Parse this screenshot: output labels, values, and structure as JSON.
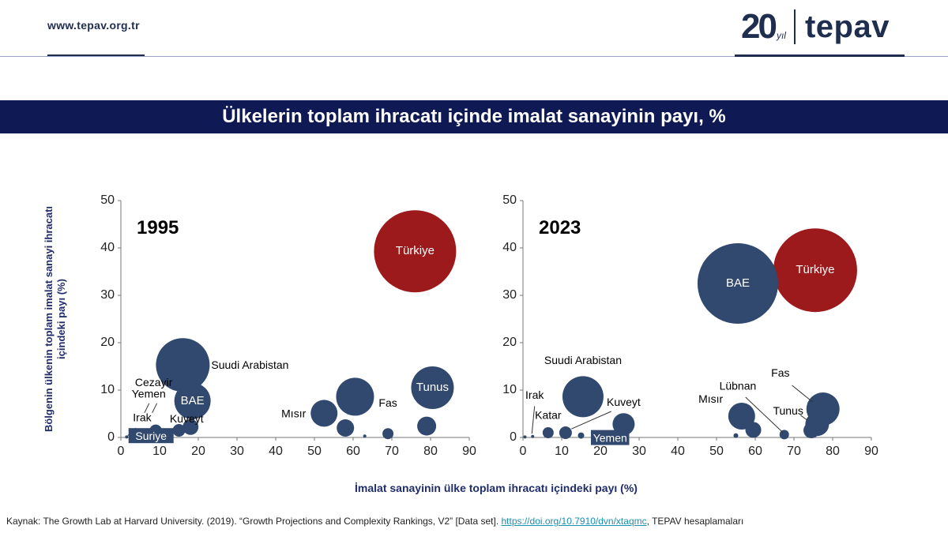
{
  "header": {
    "url": "www.tepav.org.tr",
    "logo_number": "20",
    "logo_suffix": "yıl",
    "logo_name": "tepav"
  },
  "title": "Ülkelerin toplam ihracatı içinde imalat sanayinin payı, %",
  "colors": {
    "navy": "#31496e",
    "red": "#9c1a1c",
    "band": "#0f1a55"
  },
  "chart_data": [
    {
      "type": "scatter",
      "year_label": "1995",
      "xlabel": "İmalat sanayinin ülke toplam ihracatı içindeki payı (%)",
      "ylabel": "Bölgenin ülkenin toplam imalat sanayi ihracatı içindeki payı (%)",
      "xlim": [
        0,
        90
      ],
      "ylim": [
        0,
        50
      ],
      "xticks": [
        "0",
        "10",
        "20",
        "30",
        "40",
        "50",
        "60",
        "70",
        "80",
        "90"
      ],
      "yticks": [
        "0",
        "10",
        "20",
        "30",
        "40",
        "50"
      ],
      "points": [
        {
          "label": "Türkiye",
          "x": 76,
          "y": 39.3,
          "r": 52,
          "color": "#9c1a1c",
          "labelpos": "inside"
        },
        {
          "label": "Suudi Arabistan",
          "x": 16,
          "y": 15.3,
          "r": 34,
          "color": "#31496e",
          "labelpos": "right"
        },
        {
          "label": "BAE",
          "x": 18.5,
          "y": 7.7,
          "r": 23,
          "color": "#31496e",
          "labelpos": "inside"
        },
        {
          "label": "Tunus",
          "x": 80.5,
          "y": 10.5,
          "r": 27,
          "color": "#31496e",
          "labelpos": "inside"
        },
        {
          "label": "Mısır",
          "x": 52.5,
          "y": 5.1,
          "r": 17,
          "color": "#31496e",
          "labelpos": "left"
        },
        {
          "label": "Fas",
          "x": 60.5,
          "y": 8.6,
          "r": 24,
          "color": "#31496e",
          "labelpos": "none"
        },
        {
          "label": "",
          "x": 58,
          "y": 2,
          "r": 11,
          "color": "#31496e",
          "labelpos": "none"
        },
        {
          "label": "",
          "x": 69,
          "y": 0.8,
          "r": 7,
          "color": "#31496e",
          "labelpos": "none"
        },
        {
          "label": "",
          "x": 79,
          "y": 2.4,
          "r": 12,
          "color": "#31496e",
          "labelpos": "none"
        },
        {
          "label": "",
          "x": 63,
          "y": 0.3,
          "r": 2,
          "color": "#31496e",
          "labelpos": "none"
        },
        {
          "label": "Kuveyt",
          "x": 18,
          "y": 2.2,
          "r": 10,
          "color": "#31496e",
          "labelpos": "none"
        },
        {
          "label": "",
          "x": 15,
          "y": 1.5,
          "r": 8,
          "color": "#31496e",
          "labelpos": "none"
        },
        {
          "label": "Cezayir",
          "x": 9,
          "y": 1.4,
          "r": 8,
          "color": "#31496e",
          "labelpos": "none"
        },
        {
          "label": "Yemen",
          "x": 7,
          "y": 0.8,
          "r": 4,
          "color": "#31496e",
          "labelpos": "none"
        },
        {
          "label": "Irak",
          "x": 1.5,
          "y": 0.1,
          "r": 2,
          "color": "#31496e",
          "labelpos": "none"
        },
        {
          "label": "Suriye",
          "x": 10,
          "y": 0.4,
          "r": 6,
          "color": "#31496e",
          "labelpos": "none"
        }
      ],
      "annotations": [
        {
          "text": "Fas",
          "x": 69,
          "y": 6.5,
          "anchor": "middle",
          "style": "plain"
        },
        {
          "text": "Kuveyt",
          "x": 17,
          "y": 3.2,
          "anchor": "middle",
          "style": "plain"
        },
        {
          "text": "Cezayir",
          "x": 8.5,
          "y": 10.8,
          "anchor": "middle",
          "style": "plain"
        },
        {
          "text": "Yemen",
          "x": 7.2,
          "y": 8.4,
          "anchor": "middle",
          "style": "plain"
        },
        {
          "text": "Irak",
          "x": 5.5,
          "y": 3.4,
          "anchor": "middle",
          "style": "plain"
        },
        {
          "text": "Suriye",
          "x": 7.8,
          "y": 0.3,
          "anchor": "middle",
          "style": "boxed"
        }
      ],
      "leaders": [
        {
          "x1": 9.3,
          "y1": 7.2,
          "x2": 8.1,
          "y2": 5.2
        },
        {
          "x1": 7.3,
          "y1": 7.2,
          "x2": 6.1,
          "y2": 5.2
        },
        {
          "x1": 3.8,
          "y1": 2.0,
          "x2": 1.8,
          "y2": 0.4
        }
      ]
    },
    {
      "type": "scatter",
      "year_label": "2023",
      "xlim": [
        0,
        90
      ],
      "ylim": [
        0,
        50
      ],
      "xticks": [
        "0",
        "10",
        "20",
        "30",
        "40",
        "50",
        "60",
        "70",
        "80",
        "90"
      ],
      "yticks": [
        "0",
        "10",
        "20",
        "30",
        "40",
        "50"
      ],
      "points": [
        {
          "label": "Türkiye",
          "x": 75.5,
          "y": 35.3,
          "r": 53,
          "color": "#9c1a1c",
          "labelpos": "inside"
        },
        {
          "label": "BAE",
          "x": 55.5,
          "y": 32.5,
          "r": 51,
          "color": "#31496e",
          "labelpos": "inside"
        },
        {
          "label": "Suudi Arabistan",
          "x": 15.5,
          "y": 8.6,
          "r": 26,
          "color": "#31496e",
          "labelpos": "none"
        },
        {
          "label": "Kuveyt",
          "x": 26,
          "y": 2.8,
          "r": 14,
          "color": "#31496e",
          "labelpos": "none"
        },
        {
          "label": "",
          "x": 11,
          "y": 1,
          "r": 8,
          "color": "#31496e",
          "labelpos": "none"
        },
        {
          "label": "",
          "x": 6.5,
          "y": 1,
          "r": 7,
          "color": "#31496e",
          "labelpos": "none"
        },
        {
          "label": "",
          "x": 2.5,
          "y": 0.2,
          "r": 2,
          "color": "#31496e",
          "labelpos": "none"
        },
        {
          "label": "",
          "x": 0.5,
          "y": 0.1,
          "r": 2,
          "color": "#31496e",
          "labelpos": "none"
        },
        {
          "label": "",
          "x": 15,
          "y": 0.4,
          "r": 4,
          "color": "#31496e",
          "labelpos": "none"
        },
        {
          "label": "Fas",
          "x": 77.5,
          "y": 6,
          "r": 21,
          "color": "#31496e",
          "labelpos": "none"
        },
        {
          "label": "Tunus",
          "x": 76,
          "y": 2.8,
          "r": 15,
          "color": "#31496e",
          "labelpos": "none"
        },
        {
          "label": "",
          "x": 74.5,
          "y": 1.5,
          "r": 10,
          "color": "#31496e",
          "labelpos": "none"
        },
        {
          "label": "Mısır",
          "x": 56.5,
          "y": 4.5,
          "r": 17,
          "color": "#31496e",
          "labelpos": "none"
        },
        {
          "label": "",
          "x": 59.5,
          "y": 1.6,
          "r": 10,
          "color": "#31496e",
          "labelpos": "none"
        },
        {
          "label": "",
          "x": 55,
          "y": 0.4,
          "r": 3,
          "color": "#31496e",
          "labelpos": "none"
        },
        {
          "label": "Lübnan",
          "x": 67.5,
          "y": 0.6,
          "r": 6,
          "color": "#31496e",
          "labelpos": "none"
        }
      ],
      "annotations": [
        {
          "text": "Suudi Arabistan",
          "x": 15.5,
          "y": 15.5,
          "anchor": "middle",
          "style": "plain"
        },
        {
          "text": "Kuveyt",
          "x": 26,
          "y": 6.7,
          "anchor": "middle",
          "style": "plain"
        },
        {
          "text": "Irak",
          "x": 3,
          "y": 8.2,
          "anchor": "middle",
          "style": "plain"
        },
        {
          "text": "Katar",
          "x": 6.5,
          "y": 3.9,
          "anchor": "middle",
          "style": "plain"
        },
        {
          "text": "Yemen",
          "x": 22.5,
          "y": -0.1,
          "anchor": "middle",
          "style": "boxed"
        },
        {
          "text": "Mısır",
          "x": 48.5,
          "y": 7.3,
          "anchor": "middle",
          "style": "plain"
        },
        {
          "text": "Lübnan",
          "x": 55.5,
          "y": 10.1,
          "anchor": "middle",
          "style": "plain"
        },
        {
          "text": "Fas",
          "x": 66.5,
          "y": 12.8,
          "anchor": "middle",
          "style": "plain"
        },
        {
          "text": "Tunus",
          "x": 68.5,
          "y": 4.8,
          "anchor": "middle",
          "style": "plain"
        }
      ],
      "leaders": [
        {
          "x1": 3,
          "y1": 6.6,
          "x2": 2.3,
          "y2": 0.8
        },
        {
          "x1": 22.8,
          "y1": 5.5,
          "x2": 12.5,
          "y2": 1.8
        },
        {
          "x1": 57.5,
          "y1": 8.5,
          "x2": 67.2,
          "y2": 1.0
        },
        {
          "x1": 69.5,
          "y1": 11,
          "x2": 74.8,
          "y2": 7.5
        },
        {
          "x1": 71.7,
          "y1": 4.7,
          "x2": 73.5,
          "y2": 3.6
        }
      ]
    }
  ],
  "shared_xlabel": "İmalat sanayinin ülke toplam ihracatı içindeki payı (%)",
  "shared_ylabel_line1": "Bölgenin ülkenin toplam imalat sanayi ihracatı",
  "shared_ylabel_line2": "içindeki payı (%)",
  "source": {
    "prefix": "Kaynak: The Growth Lab at Harvard University. (2019). “Growth Projections and Complexity Rankings, V2” [Data set]. ",
    "link": "https://doi.org/10.7910/dvn/xtaqmc",
    "suffix": ", TEPAV hesaplamaları"
  }
}
